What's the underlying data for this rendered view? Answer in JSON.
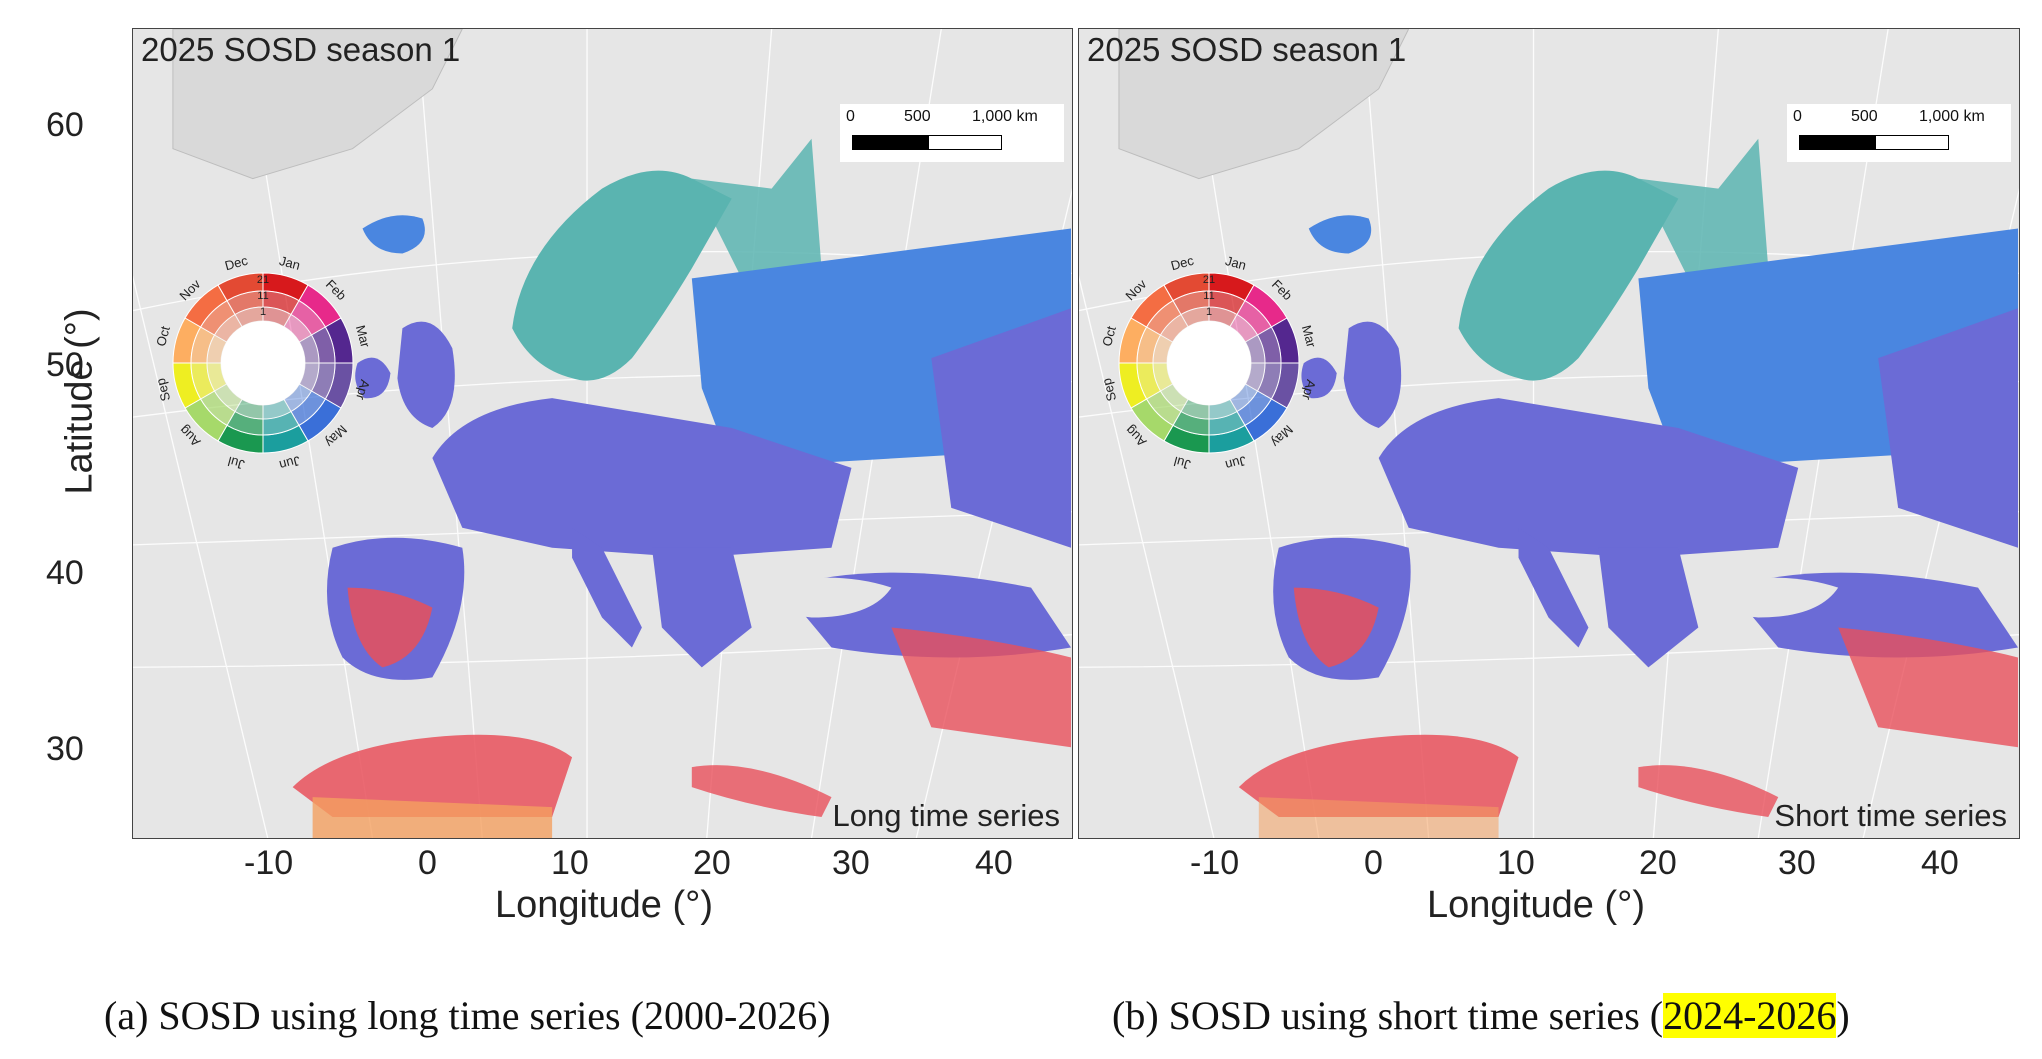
{
  "panels": [
    {
      "season_title": "2025 SOSD season 1",
      "series_label": "Long time series",
      "caption_prefix": "(a) SOSD using long time series (",
      "caption_period": "2000-2026",
      "caption_suffix": ")",
      "caption_period_highlighted": false
    },
    {
      "season_title": "2025 SOSD season 1",
      "series_label": "Short time series",
      "caption_prefix": "(b) SOSD using short time series (",
      "caption_period": "2024-2026",
      "caption_suffix": ")",
      "caption_period_highlighted": true,
      "highlight_color": "#ffff00"
    }
  ],
  "scale_bar": {
    "labels": [
      "0",
      "500",
      "1,000 km"
    ]
  },
  "axes": {
    "y_title": "Latitude (°)",
    "x_title": "Longitude (°)",
    "y_ticks": [
      "60",
      "50",
      "40",
      "30"
    ],
    "x_ticks": [
      "-10",
      "0",
      "10",
      "20",
      "30",
      "40"
    ]
  },
  "color_wheel": {
    "months": [
      "Jan",
      "Feb",
      "Mar",
      "Apr",
      "May",
      "Jun",
      "Jul",
      "Aug",
      "Sep",
      "Oct",
      "Nov",
      "Dec"
    ],
    "colors": [
      "#d7191c",
      "#e7298a",
      "#54278f",
      "#6a51a3",
      "#3a6fd8",
      "#1b9e9e",
      "#1a9850",
      "#a6d96a",
      "#eeee22",
      "#fdae61",
      "#f46d43",
      "#e34a33"
    ],
    "day_labels": [
      "21",
      "11",
      "1"
    ]
  },
  "map_colors": {
    "background": "#e6e6e6",
    "land_grey": "#d9d9d9",
    "purple": "#6b6bd6",
    "blue": "#4a86e0",
    "teal": "#5ab4b0",
    "red": "#e8505b",
    "orange": "#f4a060"
  }
}
